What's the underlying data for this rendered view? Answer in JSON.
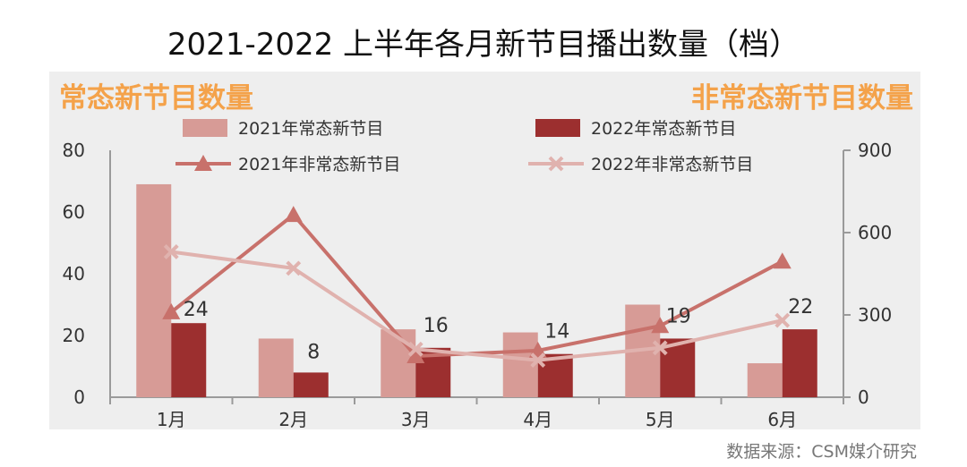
{
  "title": "2021-2022 上半年各月新节目播出数量（档）",
  "left_title": "常态新节目数量",
  "right_title": "非常态新节目数量",
  "source": "数据来源：CSM媒介研究",
  "colors": {
    "bar2021": "#d79b96",
    "bar2022": "#9c2f2f",
    "line2021": "#c8716b",
    "line2022": "#e0b2ae",
    "background": "#eeeeee",
    "accent": "#f4a24a"
  },
  "chart_data": {
    "type": "bar",
    "categories": [
      "1月",
      "2月",
      "3月",
      "4月",
      "5月",
      "6月"
    ],
    "y_left": {
      "min": 0,
      "max": 80,
      "ticks": [
        "0",
        "20",
        "40",
        "60",
        "80"
      ]
    },
    "y_right": {
      "min": 0,
      "max": 900,
      "ticks": [
        "0",
        "300",
        "600",
        "900"
      ]
    },
    "legend": [
      "2021年常态新节目",
      "2022年常态新节目",
      "2021年非常态新节目",
      "2022年非常态新节目"
    ],
    "bars": [
      {
        "name": "2021年常态新节目",
        "values": [
          69,
          19,
          22,
          21,
          30,
          11
        ]
      },
      {
        "name": "2022年常态新节目",
        "values": [
          24,
          8,
          16,
          14,
          19,
          22
        ],
        "labels": [
          "24",
          "8",
          "16",
          "14",
          "19",
          "22"
        ]
      }
    ],
    "lines": [
      {
        "name": "2021年非常态新节目",
        "axis": "right",
        "marker": "triangle",
        "values": [
          310,
          665,
          150,
          170,
          260,
          495
        ]
      },
      {
        "name": "2022年非常态新节目",
        "axis": "right",
        "marker": "x",
        "values": [
          530,
          470,
          175,
          135,
          180,
          280
        ]
      }
    ]
  }
}
